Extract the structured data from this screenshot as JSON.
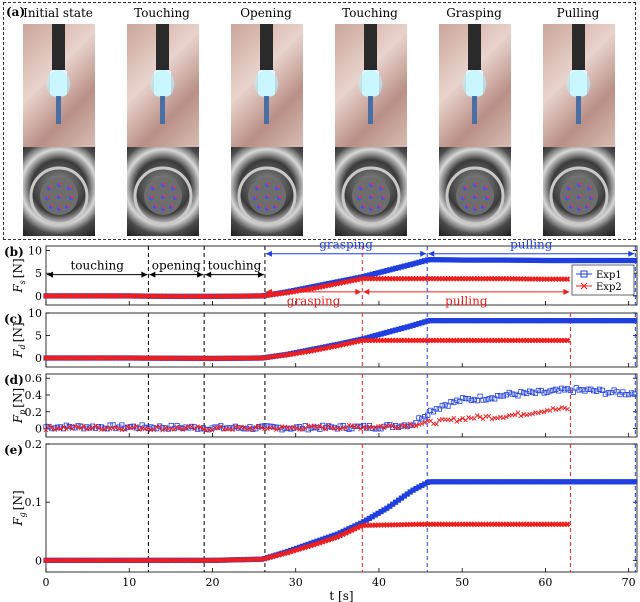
{
  "panel_a": {
    "tag": "(a)",
    "frames": [
      "Initial state",
      "Touching",
      "Opening",
      "Touching",
      "Grasping",
      "Pulling"
    ]
  },
  "colors": {
    "exp1": "#1f3fe0",
    "exp2": "#ee1f1f",
    "phase_line": "#000000"
  },
  "chart_data": [
    {
      "type": "scatter",
      "panel": "(b)",
      "ylabel_symbol": "F",
      "ylabel_sub": "s",
      "ylabel_unit": "[N]",
      "xlim": [
        0,
        71
      ],
      "ylim": [
        -2,
        11
      ],
      "yticks": [
        0,
        5,
        10
      ],
      "series": [
        {
          "name": "Exp1",
          "marker": "square",
          "x": [
            0,
            5,
            10,
            15,
            20,
            26,
            29,
            32,
            35,
            38,
            41,
            44,
            46,
            50,
            55,
            60,
            65,
            70,
            71
          ],
          "y": [
            0,
            0,
            0,
            -0.1,
            -0.1,
            0,
            0.9,
            2.0,
            3.1,
            4.2,
            5.6,
            7.0,
            8.0,
            7.9,
            7.9,
            7.8,
            7.8,
            7.8,
            7.8
          ]
        },
        {
          "name": "Exp2",
          "marker": "x",
          "x": [
            0,
            5,
            10,
            15,
            20,
            26,
            29,
            32,
            35,
            38,
            45,
            50,
            55,
            60,
            63
          ],
          "y": [
            0,
            0,
            0,
            -0.1,
            -0.1,
            0,
            0.7,
            1.6,
            2.7,
            3.8,
            3.8,
            3.8,
            3.8,
            3.7,
            3.7
          ]
        }
      ],
      "phase_lines_black": [
        12.3,
        19,
        26.3
      ],
      "phase_lines_red": [
        38
      ],
      "phase_lines_blue": [
        45.8,
        70.8
      ],
      "annotations": [
        {
          "text": "touching",
          "from": 0,
          "to": 12.3,
          "y": 4.7,
          "color": "black",
          "pos": "above"
        },
        {
          "text": "opening",
          "from": 12.3,
          "to": 19,
          "y": 4.7,
          "color": "black",
          "pos": "above"
        },
        {
          "text": "touching",
          "from": 19,
          "to": 26.3,
          "y": 4.7,
          "color": "black",
          "pos": "above"
        },
        {
          "text": "grasping",
          "from": 26.3,
          "to": 45.8,
          "y": 9.3,
          "color": "blue",
          "pos": "above"
        },
        {
          "text": "pulling",
          "from": 45.8,
          "to": 70.8,
          "y": 9.3,
          "color": "blue",
          "pos": "above"
        },
        {
          "text": "grasping",
          "from": 26.3,
          "to": 38,
          "y": 0.9,
          "color": "red",
          "pos": "below"
        },
        {
          "text": "pulling",
          "from": 38,
          "to": 63,
          "y": 0.9,
          "color": "red",
          "pos": "below"
        }
      ],
      "legend": {
        "position": "right",
        "entries": [
          "Exp1",
          "Exp2"
        ]
      }
    },
    {
      "type": "scatter",
      "panel": "(c)",
      "ylabel_symbol": "F",
      "ylabel_sub": "d",
      "ylabel_unit": "[N]",
      "xlim": [
        0,
        71
      ],
      "ylim": [
        -2,
        10
      ],
      "yticks": [
        0,
        5,
        10
      ],
      "series": [
        {
          "name": "Exp1",
          "x": [
            0,
            10,
            20,
            26,
            29,
            32,
            35,
            38,
            41,
            44,
            46,
            55,
            65,
            71
          ],
          "y": [
            0,
            0,
            -0.1,
            0,
            0.8,
            1.9,
            3.0,
            4.2,
            5.7,
            7.2,
            8.3,
            8.3,
            8.3,
            8.3
          ]
        },
        {
          "name": "Exp2",
          "x": [
            0,
            10,
            20,
            26,
            29,
            32,
            35,
            38,
            45,
            55,
            63
          ],
          "y": [
            0,
            0,
            -0.1,
            0,
            0.7,
            1.6,
            2.7,
            3.9,
            3.9,
            3.9,
            3.9
          ]
        }
      ],
      "phase_lines_black": [
        12.3,
        19,
        26.3
      ],
      "phase_lines_red": [
        38,
        63
      ],
      "phase_lines_blue": [
        45.8,
        70.8
      ]
    },
    {
      "type": "scatter",
      "panel": "(d)",
      "ylabel_symbol": "F",
      "ylabel_sub": "p",
      "ylabel_unit": "[N]",
      "xlim": [
        0,
        71
      ],
      "ylim": [
        -0.1,
        0.65
      ],
      "yticks": [
        0,
        0.2,
        0.4,
        0.6
      ],
      "series": [
        {
          "name": "Exp1",
          "x": [
            0,
            10,
            20,
            30,
            40,
            44,
            46,
            48,
            50,
            53,
            56,
            60,
            63,
            66,
            68,
            71
          ],
          "y": [
            0.02,
            0.02,
            0.01,
            0.01,
            0.02,
            0.05,
            0.2,
            0.29,
            0.34,
            0.37,
            0.41,
            0.43,
            0.46,
            0.45,
            0.43,
            0.42
          ]
        },
        {
          "name": "Exp2",
          "x": [
            0,
            10,
            20,
            30,
            38,
            42,
            45,
            48,
            51,
            54,
            57,
            60,
            63
          ],
          "y": [
            0.01,
            0.01,
            0.0,
            0.01,
            0.02,
            0.03,
            0.06,
            0.09,
            0.13,
            0.14,
            0.17,
            0.22,
            0.24
          ]
        }
      ],
      "phase_lines_black": [
        12.3,
        19,
        26.3
      ],
      "phase_lines_red": [
        38,
        63
      ],
      "phase_lines_blue": [
        45.8,
        70.8
      ]
    },
    {
      "type": "scatter",
      "panel": "(e)",
      "ylabel_symbol": "F",
      "ylabel_sub": "g",
      "ylabel_unit": "[N]",
      "xlim": [
        0,
        71
      ],
      "ylim": [
        -0.02,
        0.2
      ],
      "yticks": [
        0,
        0.1,
        0.2
      ],
      "xticks": [
        0,
        10,
        20,
        30,
        40,
        50,
        60,
        70
      ],
      "xlabel": "t [s]",
      "series": [
        {
          "name": "Exp1",
          "x": [
            0,
            10,
            20,
            26,
            29,
            32,
            35,
            38,
            41,
            44,
            46,
            55,
            65,
            71
          ],
          "y": [
            0,
            0,
            0,
            0.002,
            0.015,
            0.03,
            0.045,
            0.065,
            0.09,
            0.12,
            0.135,
            0.135,
            0.135,
            0.135
          ]
        },
        {
          "name": "Exp2",
          "x": [
            0,
            10,
            20,
            26,
            29,
            32,
            35,
            38,
            45,
            55,
            63
          ],
          "y": [
            0,
            0,
            0,
            0.002,
            0.013,
            0.026,
            0.04,
            0.06,
            0.062,
            0.062,
            0.062
          ]
        }
      ],
      "phase_lines_black": [
        12.3,
        19,
        26.3
      ],
      "phase_lines_red": [
        38,
        63
      ],
      "phase_lines_blue": [
        45.8,
        70.8
      ]
    }
  ]
}
